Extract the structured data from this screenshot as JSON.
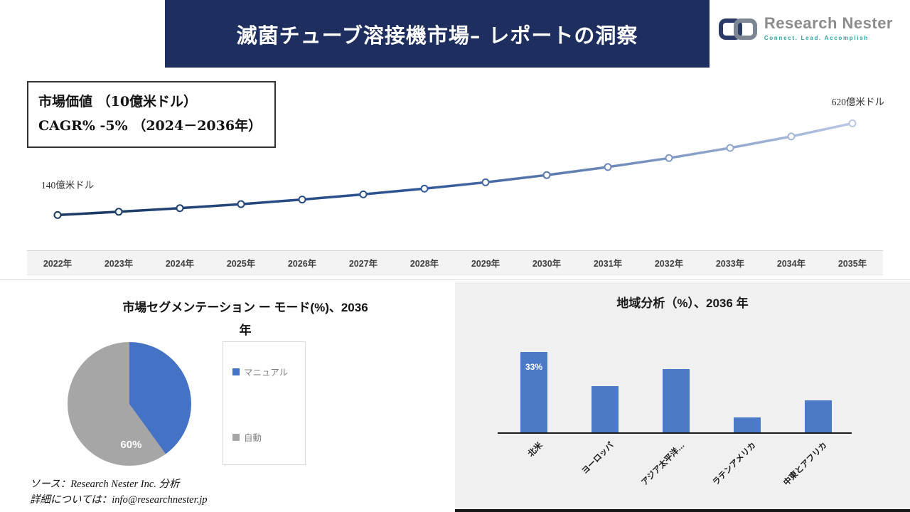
{
  "header": {
    "title": "滅菌チューブ溶接機市場– レポートの洞察"
  },
  "logo": {
    "brand": "Research Nester",
    "tagline": "Connect. Lead. Accomplish"
  },
  "market_chart": {
    "info_line1": "市場価値 （10億米ドル）",
    "info_line2": "CAGR% -5% （2024－2036年）"
  },
  "segmentation": {
    "title_line1": "市場セグメンテーション ー モード(%)、2036",
    "title_line2": "年"
  },
  "footer": {
    "source": "ソース：Research Nester Inc. 分析",
    "contact": "詳細については：info@researchnester.jp"
  },
  "colors": {
    "banner_navy": "#1e2f5f",
    "accent_blue": "#4472c4",
    "pie_gray": "#a6a6a6",
    "bar_blue": "#4d7ac7",
    "logo_teal": "#2fa3a0"
  },
  "chart_data": [
    {
      "type": "line",
      "title": "市場価値 （10億米ドル）",
      "x": [
        "2022年",
        "2023年",
        "2024年",
        "2025年",
        "2026年",
        "2027年",
        "2028年",
        "2029年",
        "2030年",
        "2031年",
        "2032年",
        "2033年",
        "2034年",
        "2035年"
      ],
      "values": [
        140,
        157,
        176,
        197,
        221,
        248,
        278,
        311,
        349,
        391,
        438,
        491,
        551,
        620
      ],
      "unit": "億米ドル",
      "annotations": [
        {
          "x": "2022年",
          "label": "140億米ドル"
        },
        {
          "x": "2035年",
          "label": "620億米ドル"
        }
      ],
      "ylim": [
        0,
        800
      ],
      "grid": false,
      "legend_position": "none"
    },
    {
      "type": "pie",
      "title": "市場セグメンテーション ー モード(%)、2036 年",
      "labels": [
        "マニュアル",
        "自動"
      ],
      "values": [
        40,
        60
      ],
      "colors": [
        "#4472c4",
        "#a6a6a6"
      ],
      "shown_label": "60%",
      "legend_position": "right"
    },
    {
      "type": "bar",
      "title": "地域分析（%）、2036 年",
      "categories": [
        "北米",
        "ヨーロッパ",
        "アジア太平洋…",
        "ラテンアメリカ",
        "中東とアフリカ"
      ],
      "values": [
        33,
        19,
        26,
        6,
        13
      ],
      "bar_color": "#4d7ac7",
      "shown_label": "33%",
      "xlabel": "",
      "ylabel": "",
      "ylim": [
        0,
        40
      ],
      "grid": false
    }
  ]
}
